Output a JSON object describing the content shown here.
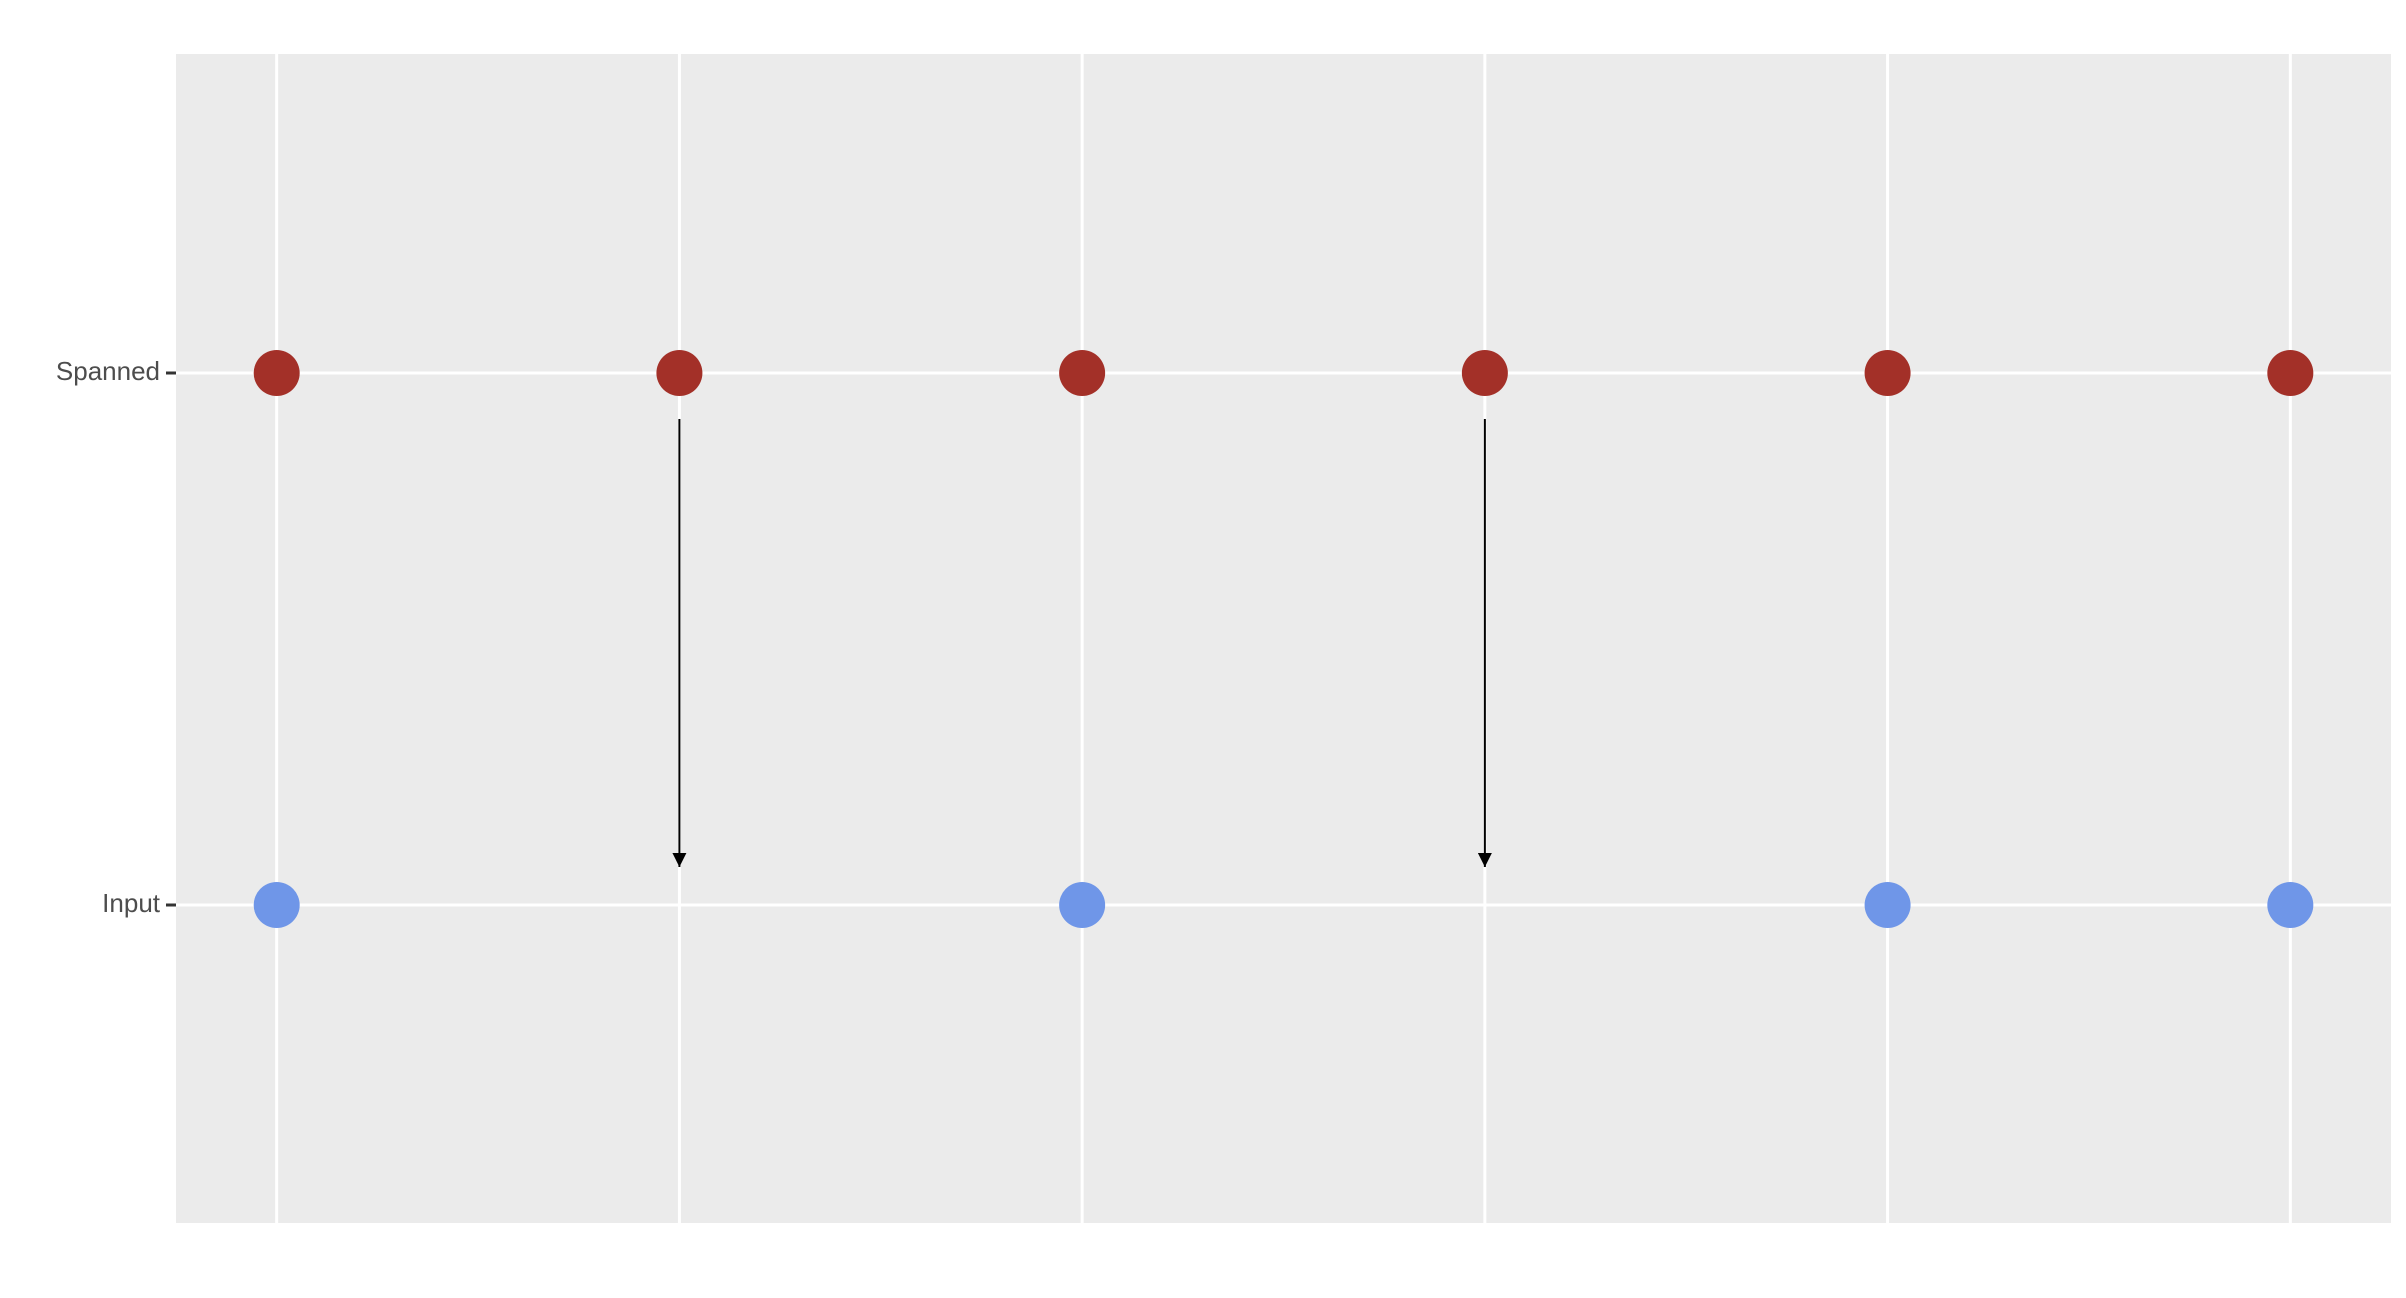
{
  "chart_data": {
    "type": "dotrows",
    "rows": [
      {
        "label": "Spanned",
        "color": "#a33028",
        "x": [
          1,
          2,
          3,
          4,
          5,
          6
        ]
      },
      {
        "label": "Input",
        "color": "#6f96e8",
        "x": [
          1,
          3,
          5,
          6
        ]
      }
    ],
    "arrows": {
      "x": [
        2,
        4
      ]
    },
    "xlim": [
      0.75,
      6.25
    ],
    "xticks": [
      1,
      2,
      3,
      4,
      5,
      6
    ],
    "grid": true
  }
}
